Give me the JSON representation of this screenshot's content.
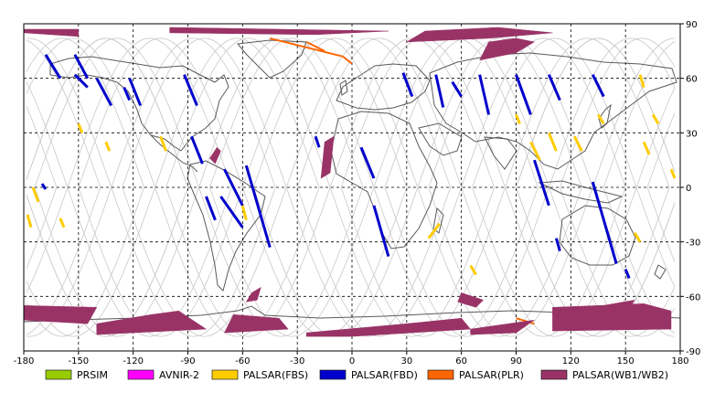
{
  "chart_data": {
    "type": "map",
    "title": "",
    "xlim": [
      -180,
      180
    ],
    "ylim": [
      -90,
      90
    ],
    "grid": true,
    "x_ticks": [
      "-180",
      "-150",
      "-120",
      "-90",
      "-60",
      "-30",
      "0",
      "30",
      "60",
      "90",
      "120",
      "150",
      "180"
    ],
    "x_tick_values": [
      -180,
      -150,
      -120,
      -90,
      -60,
      -30,
      0,
      30,
      60,
      90,
      120,
      150,
      180
    ],
    "y_ticks": [
      "90",
      "60",
      "30",
      "0",
      "-30",
      "-60",
      "-90"
    ],
    "y_tick_values": [
      90,
      60,
      30,
      0,
      -30,
      -60,
      -90
    ],
    "legend_position": "bottom",
    "legend": [
      {
        "label": "PRSIM",
        "color": "#99cc00"
      },
      {
        "label": "AVNIR-2",
        "color": "#ff00ff"
      },
      {
        "label": "PALSAR(FBS)",
        "color": "#ffcc00"
      },
      {
        "label": "PALSAR(FBD)",
        "color": "#0000cc"
      },
      {
        "label": "PALSAR(PLR)",
        "color": "#ff6600"
      },
      {
        "label": "PALSAR(WB1/WB2)",
        "color": "#993366"
      }
    ],
    "series": [
      {
        "name": "PALSAR(FBD)",
        "segments": [
          [
            [
              -168,
              73
            ],
            [
              -160,
              60
            ]
          ],
          [
            [
              -152,
              73
            ],
            [
              -145,
              60
            ]
          ],
          [
            [
              -140,
              60
            ],
            [
              -132,
              45
            ]
          ],
          [
            [
              -122,
              60
            ],
            [
              -116,
              45
            ]
          ],
          [
            [
              -92,
              62
            ],
            [
              -85,
              45
            ]
          ],
          [
            [
              -88,
              28
            ],
            [
              -82,
              13
            ]
          ],
          [
            [
              -70,
              10
            ],
            [
              -60,
              -10
            ]
          ],
          [
            [
              -72,
              -5
            ],
            [
              -60,
              -22
            ]
          ],
          [
            [
              -58,
              12
            ],
            [
              -45,
              -33
            ]
          ],
          [
            [
              -80,
              -5
            ],
            [
              -75,
              -18
            ]
          ],
          [
            [
              -170,
              2
            ],
            [
              -168,
              -1
            ]
          ],
          [
            [
              -152,
              62
            ],
            [
              -145,
              55
            ]
          ],
          [
            [
              5,
              22
            ],
            [
              12,
              5
            ]
          ],
          [
            [
              12,
              -10
            ],
            [
              20,
              -38
            ]
          ],
          [
            [
              28,
              63
            ],
            [
              33,
              50
            ]
          ],
          [
            [
              46,
              62
            ],
            [
              50,
              44
            ]
          ],
          [
            [
              70,
              62
            ],
            [
              75,
              40
            ]
          ],
          [
            [
              90,
              62
            ],
            [
              98,
              40
            ]
          ],
          [
            [
              108,
              62
            ],
            [
              114,
              48
            ]
          ],
          [
            [
              132,
              62
            ],
            [
              138,
              50
            ]
          ],
          [
            [
              100,
              15
            ],
            [
              108,
              -10
            ]
          ],
          [
            [
              132,
              3
            ],
            [
              145,
              -42
            ]
          ],
          [
            [
              112,
              -28
            ],
            [
              114,
              -35
            ]
          ],
          [
            [
              150,
              -45
            ],
            [
              152,
              -50
            ]
          ],
          [
            [
              -125,
              55
            ],
            [
              -122,
              48
            ]
          ],
          [
            [
              -20,
              28
            ],
            [
              -18,
              22
            ]
          ],
          [
            [
              55,
              58
            ],
            [
              60,
              50
            ]
          ]
        ]
      },
      {
        "name": "PALSAR(FBS)",
        "segments": [
          [
            [
              -105,
              28
            ],
            [
              -102,
              20
            ]
          ],
          [
            [
              -150,
              35
            ],
            [
              -148,
              30
            ]
          ],
          [
            [
              -135,
              25
            ],
            [
              -133,
              20
            ]
          ],
          [
            [
              -175,
              0
            ],
            [
              -172,
              -8
            ]
          ],
          [
            [
              -178,
              -15
            ],
            [
              -176,
              -22
            ]
          ],
          [
            [
              -160,
              -17
            ],
            [
              -158,
              -22
            ]
          ],
          [
            [
              90,
              40
            ],
            [
              92,
              35
            ]
          ],
          [
            [
              98,
              25
            ],
            [
              103,
              15
            ]
          ],
          [
            [
              108,
              30
            ],
            [
              112,
              20
            ]
          ],
          [
            [
              122,
              28
            ],
            [
              126,
              20
            ]
          ],
          [
            [
              135,
              40
            ],
            [
              138,
              35
            ]
          ],
          [
            [
              158,
              62
            ],
            [
              160,
              55
            ]
          ],
          [
            [
              165,
              40
            ],
            [
              168,
              35
            ]
          ],
          [
            [
              160,
              25
            ],
            [
              163,
              18
            ]
          ],
          [
            [
              65,
              -43
            ],
            [
              68,
              -48
            ]
          ],
          [
            [
              48,
              -20
            ],
            [
              42,
              -28
            ]
          ],
          [
            [
              -60,
              -10
            ],
            [
              -58,
              -18
            ]
          ],
          [
            [
              155,
              -25
            ],
            [
              158,
              -30
            ]
          ],
          [
            [
              175,
              10
            ],
            [
              177,
              5
            ]
          ]
        ]
      },
      {
        "name": "PALSAR(PLR)",
        "segments": [
          [
            [
              -45,
              82
            ],
            [
              -5,
              72
            ]
          ],
          [
            [
              -25,
              80
            ],
            [
              -15,
              75
            ]
          ],
          [
            [
              -5,
              72
            ],
            [
              0,
              68
            ]
          ],
          [
            [
              90,
              -72
            ],
            [
              100,
              -75
            ]
          ]
        ]
      },
      {
        "name": "PALSAR(WB1/WB2)",
        "polygons": [
          [
            [
              -180,
              -65
            ],
            [
              -140,
              -66
            ],
            [
              -145,
              -75
            ],
            [
              -180,
              -73
            ]
          ],
          [
            [
              -140,
              -75
            ],
            [
              -110,
              -70
            ],
            [
              -95,
              -68
            ],
            [
              -80,
              -78
            ],
            [
              -140,
              -81
            ]
          ],
          [
            [
              -65,
              -70
            ],
            [
              -40,
              -72
            ],
            [
              -35,
              -78
            ],
            [
              -70,
              -80
            ]
          ],
          [
            [
              -25,
              -80
            ],
            [
              30,
              -75
            ],
            [
              60,
              -72
            ],
            [
              65,
              -78
            ],
            [
              0,
              -82
            ],
            [
              -25,
              -82
            ]
          ],
          [
            [
              65,
              -78
            ],
            [
              100,
              -73
            ],
            [
              90,
              -80
            ],
            [
              65,
              -81
            ]
          ],
          [
            [
              110,
              -66
            ],
            [
              160,
              -64
            ],
            [
              175,
              -68
            ],
            [
              175,
              -78
            ],
            [
              110,
              -79
            ]
          ],
          [
            [
              -180,
              85
            ],
            [
              -150,
              83
            ],
            [
              -150,
              87
            ],
            [
              -180,
              87
            ]
          ],
          [
            [
              -100,
              85
            ],
            [
              -20,
              84
            ],
            [
              20,
              86
            ],
            [
              -100,
              88
            ]
          ],
          [
            [
              30,
              80
            ],
            [
              75,
              82
            ],
            [
              110,
              85
            ],
            [
              80,
              88
            ],
            [
              40,
              86
            ]
          ],
          [
            [
              70,
              70
            ],
            [
              90,
              74
            ],
            [
              100,
              80
            ],
            [
              90,
              82
            ],
            [
              75,
              80
            ]
          ],
          [
            [
              60,
              -58
            ],
            [
              72,
              -62
            ],
            [
              68,
              -66
            ],
            [
              58,
              -63
            ]
          ],
          [
            [
              138,
              -65
            ],
            [
              155,
              -62
            ],
            [
              150,
              -70
            ],
            [
              135,
              -70
            ]
          ],
          [
            [
              -75,
              13
            ],
            [
              -72,
              20
            ],
            [
              -74,
              22
            ],
            [
              -78,
              16
            ]
          ],
          [
            [
              -15,
              25
            ],
            [
              -10,
              28
            ],
            [
              -12,
              8
            ],
            [
              -17,
              5
            ]
          ],
          [
            [
              -55,
              -58
            ],
            [
              -50,
              -55
            ],
            [
              -52,
              -62
            ],
            [
              -58,
              -63
            ]
          ]
        ]
      }
    ]
  }
}
